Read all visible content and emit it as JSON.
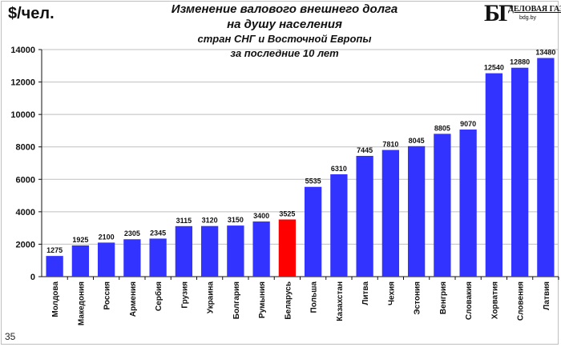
{
  "header": {
    "unit": "$/чел.",
    "title_lines": [
      "Изменение валового  внешнего долга",
      "на душу населения",
      "стран СНГ и Восточной  Европы",
      "за последние  10 лет"
    ]
  },
  "logo": {
    "mark": "БГ",
    "name": "ДЕЛОВАЯ ГАЗЕТА",
    "url": "bdg.by"
  },
  "footer": {
    "page_number": "35"
  },
  "chart_data": {
    "type": "bar",
    "title": "Изменение валового  внешнего долга на душу населения стран СНГ и Восточной  Европы за последние  10 лет",
    "ylabel": "$/чел.",
    "ylim": [
      0,
      14000
    ],
    "yticks": [
      0,
      2000,
      4000,
      6000,
      8000,
      10000,
      12000,
      14000
    ],
    "grid": true,
    "categories": [
      "Молдова",
      "Македония",
      "Россия",
      "Армения",
      "Сербия",
      "Грузия",
      "Украина",
      "Болгария",
      "Румыния",
      "Беларусь",
      "Польша",
      "Казахстан",
      "Литва",
      "Чехия",
      "Эстония",
      "Венгрия",
      "Словакия",
      "Хорватия",
      "Словения",
      "Латвия"
    ],
    "values": [
      1275,
      1925,
      2100,
      2305,
      2345,
      3115,
      3120,
      3150,
      3400,
      3525,
      5535,
      6310,
      7445,
      7810,
      8045,
      8805,
      9070,
      12540,
      12880,
      13480
    ],
    "value_labels": [
      "1275",
      "1925",
      "2100",
      "2305",
      "2345",
      "3115",
      "3120",
      "3150",
      "3400",
      "3525",
      "5535",
      "6310",
      "7445",
      "7810",
      "8045",
      "8805",
      "9070",
      "12540",
      "12880",
      "13480"
    ],
    "colors": {
      "default": "#3333ff",
      "highlight": "#ff0000",
      "highlight_category": "Беларусь",
      "grid": "#bfbfbf"
    }
  }
}
